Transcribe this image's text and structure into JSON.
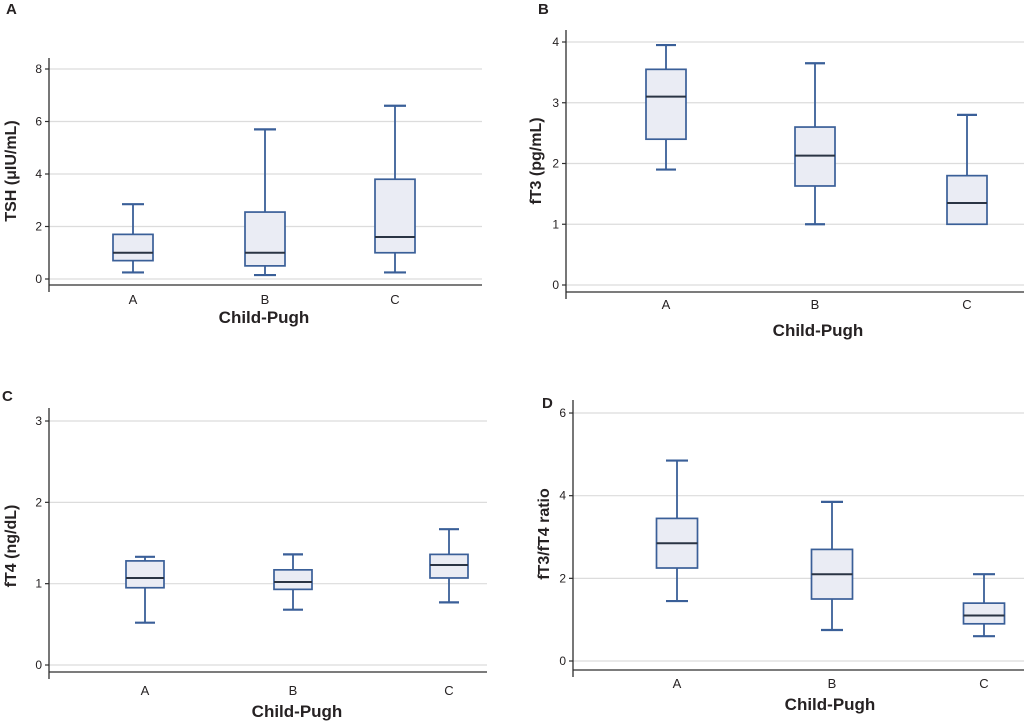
{
  "figure": {
    "description": "Four-panel box plot figure of thyroid function tests by Child-Pugh class",
    "x_axis_title": "Child-Pugh"
  },
  "styles": {
    "background": "#ffffff",
    "box_fill": "#eaecf4",
    "box_stroke": "#3a5f98",
    "whisker_color": "#3a5f98",
    "median_color": "#2a3444",
    "grid_color": "#dcdcdc",
    "axis_color": "#2e2e2e",
    "text_color": "#262223"
  },
  "chart_data": [
    {
      "type": "box",
      "panel_label": "A",
      "ylabel": "TSH (μIU/mL)",
      "xlabel": "Child-Pugh",
      "categories": [
        "A",
        "B",
        "C"
      ],
      "yticks": [
        0,
        2,
        4,
        6,
        8
      ],
      "ylim": [
        0,
        8
      ],
      "grid": true,
      "legend": "none",
      "boxes": [
        {
          "category": "A",
          "whisker_low": 0.25,
          "q1": 0.7,
          "median": 1.0,
          "q3": 1.7,
          "whisker_high": 2.85
        },
        {
          "category": "B",
          "whisker_low": 0.15,
          "q1": 0.5,
          "median": 1.0,
          "q3": 2.55,
          "whisker_high": 5.7
        },
        {
          "category": "C",
          "whisker_low": 0.25,
          "q1": 1.0,
          "median": 1.6,
          "q3": 3.8,
          "whisker_high": 6.6
        }
      ]
    },
    {
      "type": "box",
      "panel_label": "B",
      "ylabel": "fT3 (pg/mL)",
      "xlabel": "Child-Pugh",
      "categories": [
        "A",
        "B",
        "C"
      ],
      "yticks": [
        0,
        1,
        2,
        3,
        4
      ],
      "ylim": [
        0,
        4
      ],
      "grid": true,
      "legend": "none",
      "boxes": [
        {
          "category": "A",
          "whisker_low": 1.9,
          "q1": 2.4,
          "median": 3.1,
          "q3": 3.55,
          "whisker_high": 3.95
        },
        {
          "category": "B",
          "whisker_low": 1.0,
          "q1": 1.63,
          "median": 2.13,
          "q3": 2.6,
          "whisker_high": 3.65
        },
        {
          "category": "C",
          "whisker_low": 1.0,
          "q1": 1.0,
          "median": 1.35,
          "q3": 1.8,
          "whisker_high": 2.8
        }
      ]
    },
    {
      "type": "box",
      "panel_label": "C",
      "ylabel": "fT4 (ng/dL)",
      "xlabel": "Child-Pugh",
      "categories": [
        "A",
        "B",
        "C"
      ],
      "yticks": [
        0,
        1,
        2,
        3
      ],
      "ylim": [
        0,
        3
      ],
      "grid": true,
      "legend": "none",
      "boxes": [
        {
          "category": "A",
          "whisker_low": 0.52,
          "q1": 0.95,
          "median": 1.07,
          "q3": 1.28,
          "whisker_high": 1.33
        },
        {
          "category": "B",
          "whisker_low": 0.68,
          "q1": 0.93,
          "median": 1.02,
          "q3": 1.17,
          "whisker_high": 1.36
        },
        {
          "category": "C",
          "whisker_low": 0.77,
          "q1": 1.07,
          "median": 1.23,
          "q3": 1.36,
          "whisker_high": 1.67
        }
      ]
    },
    {
      "type": "box",
      "panel_label": "D",
      "ylabel": "fT3/fT4 ratio",
      "xlabel": "Child-Pugh",
      "categories": [
        "A",
        "B",
        "C"
      ],
      "yticks": [
        0,
        2,
        4,
        6
      ],
      "ylim": [
        0,
        6
      ],
      "grid": true,
      "legend": "none",
      "boxes": [
        {
          "category": "A",
          "whisker_low": 1.45,
          "q1": 2.25,
          "median": 2.85,
          "q3": 3.45,
          "whisker_high": 4.85
        },
        {
          "category": "B",
          "whisker_low": 0.75,
          "q1": 1.5,
          "median": 2.1,
          "q3": 2.7,
          "whisker_high": 3.85
        },
        {
          "category": "C",
          "whisker_low": 0.6,
          "q1": 0.9,
          "median": 1.1,
          "q3": 1.4,
          "whisker_high": 2.1
        }
      ]
    }
  ]
}
